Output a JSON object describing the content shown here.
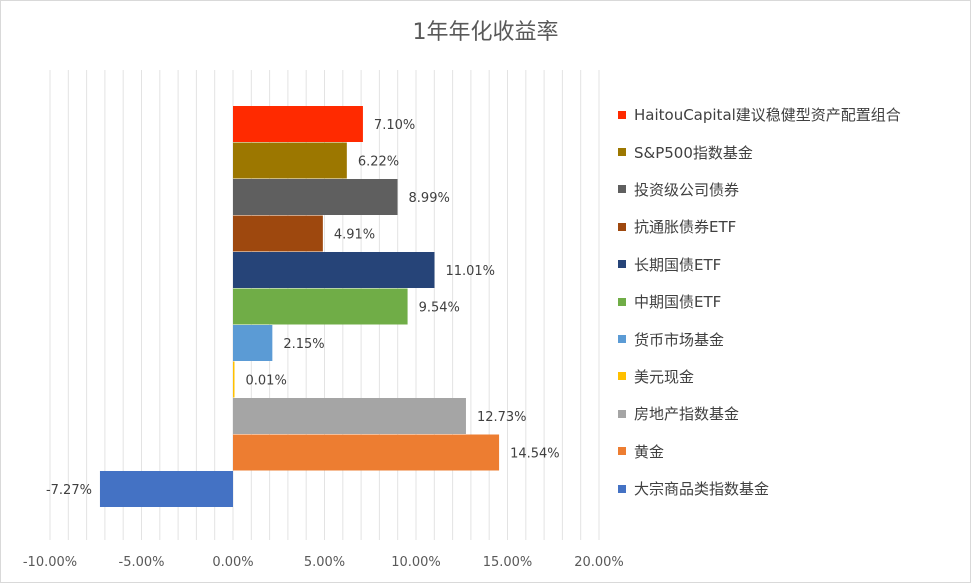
{
  "chart_data": {
    "type": "bar",
    "orientation": "horizontal",
    "title": "1年年化收益率",
    "categories": [
      "HaitouCapital建议稳健型资产配置组合",
      "S&P500指数基金",
      "投资级公司债券",
      "抗通胀债券ETF",
      "长期国债ETF",
      "中期国债ETF",
      "货币市场基金",
      "美元现金",
      "房地产指数基金",
      "黄金",
      "大宗商品类指数基金"
    ],
    "values": [
      7.1,
      6.22,
      8.99,
      4.91,
      11.01,
      9.54,
      2.15,
      0.01,
      12.73,
      14.54,
      -7.27
    ],
    "value_labels": [
      "7.10%",
      "6.22%",
      "8.99%",
      "4.91%",
      "11.01%",
      "9.54%",
      "2.15%",
      "0.01%",
      "12.73%",
      "14.54%",
      "-7.27%"
    ],
    "colors": [
      "#ff2a00",
      "#9c7700",
      "#5f5f5f",
      "#9e480e",
      "#264478",
      "#70ad47",
      "#5b9bd5",
      "#ffc000",
      "#a5a5a5",
      "#ed7d31",
      "#4472c4"
    ],
    "xlim": [
      -10,
      20
    ],
    "xticks": [
      -10,
      -5,
      0,
      5,
      10,
      15,
      20
    ],
    "xtick_labels": [
      "-10.00%",
      "-5.00%",
      "0.00%",
      "5.00%",
      "10.00%",
      "15.00%",
      "20.00%"
    ],
    "minor_gridline_step": 1,
    "grid": true,
    "legend_position": "right",
    "xlabel": "",
    "ylabel": ""
  }
}
